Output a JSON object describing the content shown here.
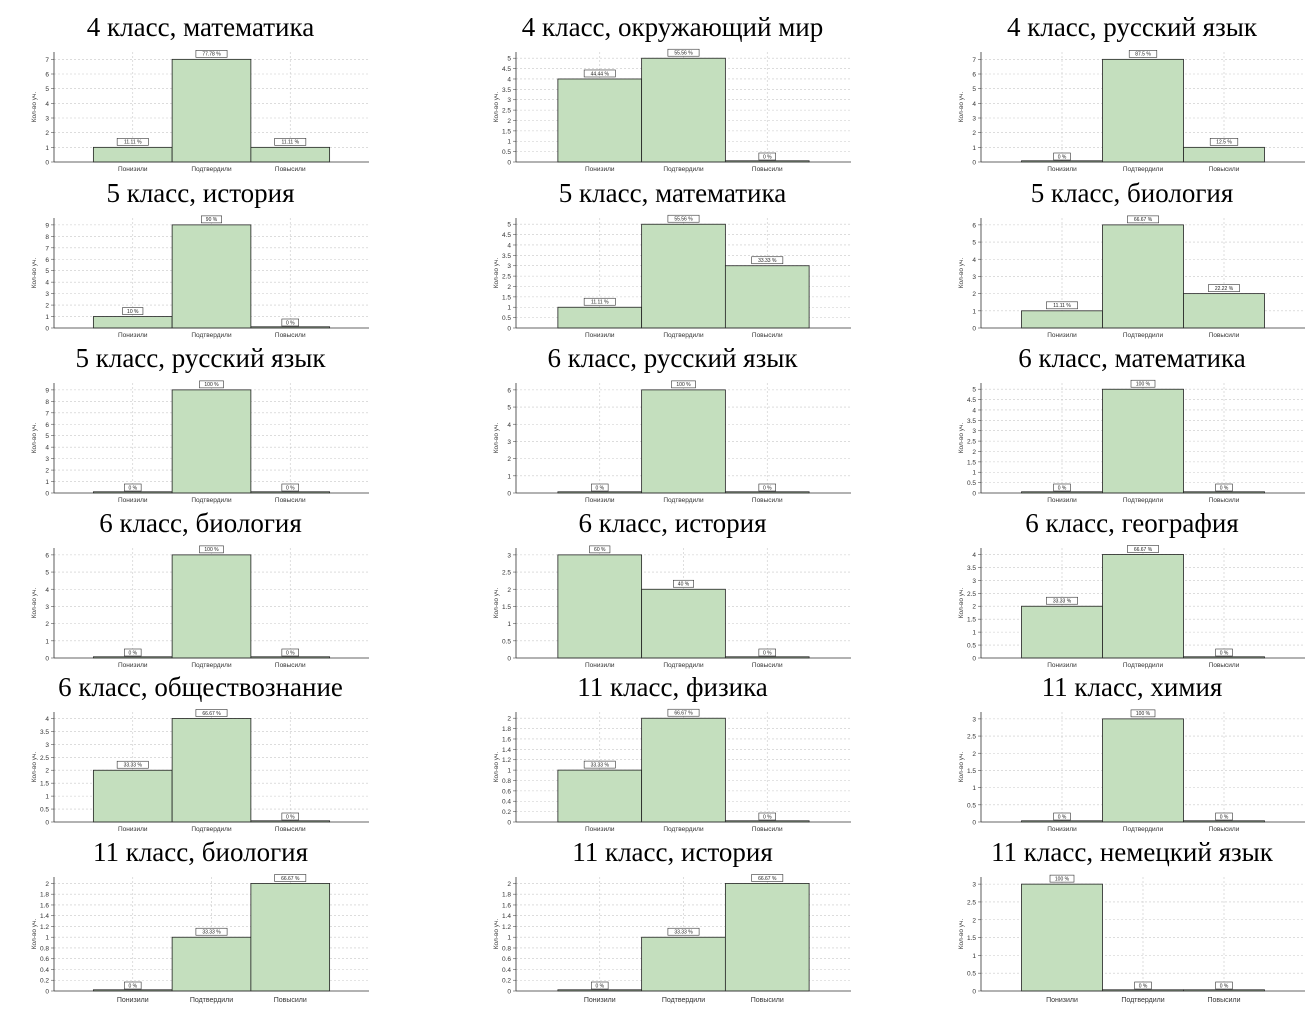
{
  "chart_data": [
    {
      "type": "bar",
      "title": "4 класс, математика",
      "ylabel": "Кол-во уч.",
      "categories": [
        "Понизили",
        "Подтвердили",
        "Повысили"
      ],
      "values": [
        1,
        7,
        1
      ],
      "labels": [
        "11.11 %",
        "77.78 %",
        "11.11 %"
      ],
      "yticks": [
        0,
        1,
        2,
        3,
        4,
        5,
        6,
        7
      ],
      "ylim": [
        0,
        7.5
      ],
      "bar_color": "#c4dfbe"
    },
    {
      "type": "bar",
      "title": "4 класс, окружающий мир",
      "ylabel": "Кол-во уч.",
      "categories": [
        "Понизили",
        "Подтвердили",
        "Повысили"
      ],
      "values": [
        4,
        5,
        0
      ],
      "labels": [
        "44.44 %",
        "55.56 %",
        "0 %"
      ],
      "yticks": [
        0,
        0.5,
        1,
        1.5,
        2,
        2.5,
        3,
        3.5,
        4,
        4.5,
        5
      ],
      "ylim": [
        0,
        5.3
      ],
      "bar_color": "#c4dfbe"
    },
    {
      "type": "bar",
      "title": "4 класс, русский язык",
      "ylabel": "Кол-во уч.",
      "categories": [
        "Понизили",
        "Подтвердили",
        "Повысили"
      ],
      "values": [
        0,
        7,
        1
      ],
      "labels": [
        "0 %",
        "87.5 %",
        "12.5 %"
      ],
      "yticks": [
        0,
        1,
        2,
        3,
        4,
        5,
        6,
        7
      ],
      "ylim": [
        0,
        7.5
      ],
      "bar_color": "#c4dfbe"
    },
    {
      "type": "bar",
      "title": "5 класс, история",
      "ylabel": "Кол-во уч.",
      "categories": [
        "Понизили",
        "Подтвердили",
        "Повысили"
      ],
      "values": [
        1,
        9,
        0
      ],
      "labels": [
        "10 %",
        "90 %",
        "0 %"
      ],
      "yticks": [
        0,
        1,
        2,
        3,
        4,
        5,
        6,
        7,
        8,
        9
      ],
      "ylim": [
        0,
        9.6
      ],
      "bar_color": "#c4dfbe"
    },
    {
      "type": "bar",
      "title": "5 класс, математика",
      "ylabel": "Кол-во уч.",
      "categories": [
        "Понизили",
        "Подтвердили",
        "Повысили"
      ],
      "values": [
        1,
        5,
        3
      ],
      "labels": [
        "11.11 %",
        "55.56 %",
        "33.33 %"
      ],
      "yticks": [
        0,
        0.5,
        1,
        1.5,
        2,
        2.5,
        3,
        3.5,
        4,
        4.5,
        5
      ],
      "ylim": [
        0,
        5.3
      ],
      "bar_color": "#c4dfbe"
    },
    {
      "type": "bar",
      "title": "5 класс, биология",
      "ylabel": "Кол-во уч.",
      "categories": [
        "Понизили",
        "Подтвердили",
        "Повысили"
      ],
      "values": [
        1,
        6,
        2
      ],
      "labels": [
        "11.11 %",
        "66.67 %",
        "22.22 %"
      ],
      "yticks": [
        0,
        1,
        2,
        3,
        4,
        5,
        6
      ],
      "ylim": [
        0,
        6.4
      ],
      "bar_color": "#c4dfbe"
    },
    {
      "type": "bar",
      "title": "5 класс, русский язык",
      "ylabel": "Кол-во уч.",
      "categories": [
        "Понизили",
        "Подтвердили",
        "Повысили"
      ],
      "values": [
        0,
        9,
        0
      ],
      "labels": [
        "0 %",
        "100 %",
        "0 %"
      ],
      "yticks": [
        0,
        1,
        2,
        3,
        4,
        5,
        6,
        7,
        8,
        9
      ],
      "ylim": [
        0,
        9.6
      ],
      "bar_color": "#c4dfbe"
    },
    {
      "type": "bar",
      "title": "6 класс, русский язык",
      "ylabel": "Кол-во уч.",
      "categories": [
        "Понизили",
        "Подтвердили",
        "Повысили"
      ],
      "values": [
        0,
        6,
        0
      ],
      "labels": [
        "0 %",
        "100 %",
        "0 %"
      ],
      "yticks": [
        0,
        1,
        2,
        3,
        4,
        5,
        6
      ],
      "ylim": [
        0,
        6.4
      ],
      "bar_color": "#c4dfbe"
    },
    {
      "type": "bar",
      "title": "6 класс, математика",
      "ylabel": "Кол-во уч.",
      "categories": [
        "Понизили",
        "Подтвердили",
        "Повысили"
      ],
      "values": [
        0,
        5,
        0
      ],
      "labels": [
        "0 %",
        "100 %",
        "0 %"
      ],
      "yticks": [
        0,
        0.5,
        1,
        1.5,
        2,
        2.5,
        3,
        3.5,
        4,
        4.5,
        5
      ],
      "ylim": [
        0,
        5.3
      ],
      "bar_color": "#c4dfbe"
    },
    {
      "type": "bar",
      "title": "6 класс, биология",
      "ylabel": "Кол-во уч.",
      "categories": [
        "Понизили",
        "Подтвердили",
        "Повысили"
      ],
      "values": [
        0,
        6,
        0
      ],
      "labels": [
        "0 %",
        "100 %",
        "0 %"
      ],
      "yticks": [
        0,
        1,
        2,
        3,
        4,
        5,
        6
      ],
      "ylim": [
        0,
        6.4
      ],
      "bar_color": "#c4dfbe"
    },
    {
      "type": "bar",
      "title": "6 класс, история",
      "ylabel": "Кол-во уч.",
      "categories": [
        "Понизили",
        "Подтвердили",
        "Повысили"
      ],
      "values": [
        3,
        2,
        0
      ],
      "labels": [
        "60 %",
        "40 %",
        "0 %"
      ],
      "yticks": [
        0,
        0.5,
        1,
        1.5,
        2,
        2.5,
        3
      ],
      "ylim": [
        0,
        3.2
      ],
      "bar_color": "#c4dfbe"
    },
    {
      "type": "bar",
      "title": "6 класс, география",
      "ylabel": "Кол-во уч.",
      "categories": [
        "Понизили",
        "Подтвердили",
        "Повысили"
      ],
      "values": [
        2,
        4,
        0
      ],
      "labels": [
        "33.33 %",
        "66.67 %",
        "0 %"
      ],
      "yticks": [
        0,
        0.5,
        1,
        1.5,
        2,
        2.5,
        3,
        3.5,
        4
      ],
      "ylim": [
        0,
        4.25
      ],
      "bar_color": "#c4dfbe"
    },
    {
      "type": "bar",
      "title": "6 класс, обществознание",
      "ylabel": "Кол-во уч.",
      "categories": [
        "Понизили",
        "Подтвердили",
        "Повысили"
      ],
      "values": [
        2,
        4,
        0
      ],
      "labels": [
        "33.33 %",
        "66.67 %",
        "0 %"
      ],
      "yticks": [
        0,
        0.5,
        1,
        1.5,
        2,
        2.5,
        3,
        3.5,
        4
      ],
      "ylim": [
        0,
        4.25
      ],
      "bar_color": "#c4dfbe"
    },
    {
      "type": "bar",
      "title": "11 класс, физика",
      "ylabel": "Кол-во уч.",
      "categories": [
        "Понизили",
        "Подтвердили",
        "Повысили"
      ],
      "values": [
        1,
        2,
        0
      ],
      "labels": [
        "33.33 %",
        "66.67 %",
        "0 %"
      ],
      "yticks": [
        0,
        0.2,
        0.4,
        0.6,
        0.8,
        1,
        1.2,
        1.4,
        1.6,
        1.8,
        2
      ],
      "ylim": [
        0,
        2.12
      ],
      "bar_color": "#c4dfbe"
    },
    {
      "type": "bar",
      "title": "11 класс, химия",
      "ylabel": "Кол-во уч.",
      "categories": [
        "Понизили",
        "Подтвердили",
        "Повысили"
      ],
      "values": [
        0,
        3,
        0
      ],
      "labels": [
        "0 %",
        "100 %",
        "0 %"
      ],
      "yticks": [
        0,
        0.5,
        1,
        1.5,
        2,
        2.5,
        3
      ],
      "ylim": [
        0,
        3.2
      ],
      "bar_color": "#c4dfbe"
    },
    {
      "type": "bar",
      "title": "11 класс, биология",
      "ylabel": "Кол-во уч.",
      "categories": [
        "Понизили",
        "Подтвердили",
        "Повысили"
      ],
      "values": [
        0,
        1,
        2
      ],
      "labels": [
        "0 %",
        "33.33 %",
        "66.67 %"
      ],
      "yticks": [
        0,
        0.2,
        0.4,
        0.6,
        0.8,
        1,
        1.2,
        1.4,
        1.6,
        1.8,
        2
      ],
      "ylim": [
        0,
        2.12
      ],
      "bar_color": "#c4dfbe"
    },
    {
      "type": "bar",
      "title": "11 класс, история",
      "ylabel": "Кол-во уч.",
      "categories": [
        "Понизили",
        "Подтвердили",
        "Повысили"
      ],
      "values": [
        0,
        1,
        2
      ],
      "labels": [
        "0 %",
        "33.33 %",
        "66.67 %"
      ],
      "yticks": [
        0,
        0.2,
        0.4,
        0.6,
        0.8,
        1,
        1.2,
        1.4,
        1.6,
        1.8,
        2
      ],
      "ylim": [
        0,
        2.12
      ],
      "bar_color": "#c4dfbe"
    },
    {
      "type": "bar",
      "title": "11 класс, немецкий язык",
      "ylabel": "Кол-во уч.",
      "categories": [
        "Понизили",
        "Подтвердили",
        "Повысили"
      ],
      "values": [
        3,
        0,
        0
      ],
      "labels": [
        "100 %",
        "0 %",
        "0 %"
      ],
      "yticks": [
        0,
        0.5,
        1,
        1.5,
        2,
        2.5,
        3
      ],
      "ylim": [
        0,
        3.2
      ],
      "bar_color": "#c4dfbe"
    }
  ]
}
